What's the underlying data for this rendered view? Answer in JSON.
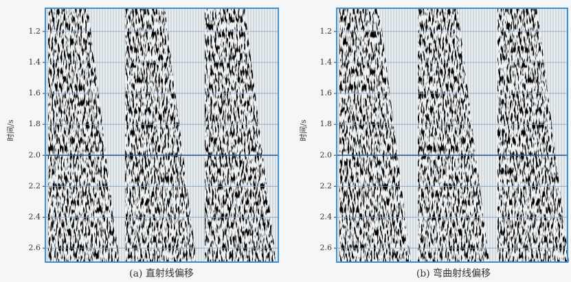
{
  "panels": [
    {
      "caption": "(a) 直射线偏移",
      "y_label": "时间/s",
      "ylim": [
        1.05,
        2.69
      ],
      "yticks": [
        1.2,
        1.4,
        1.6,
        1.8,
        {
          "value": 2,
          "label": "2.0"
        },
        2.2,
        2.4,
        2.6
      ]
    },
    {
      "caption": "(b) 弯曲射线偏移",
      "y_label": "时间/s",
      "ylim": [
        1.05,
        2.69
      ],
      "yticks": [
        1.2,
        1.4,
        1.6,
        1.8,
        {
          "value": 2,
          "label": "2.0"
        },
        2.2,
        2.4,
        2.6
      ]
    }
  ]
}
